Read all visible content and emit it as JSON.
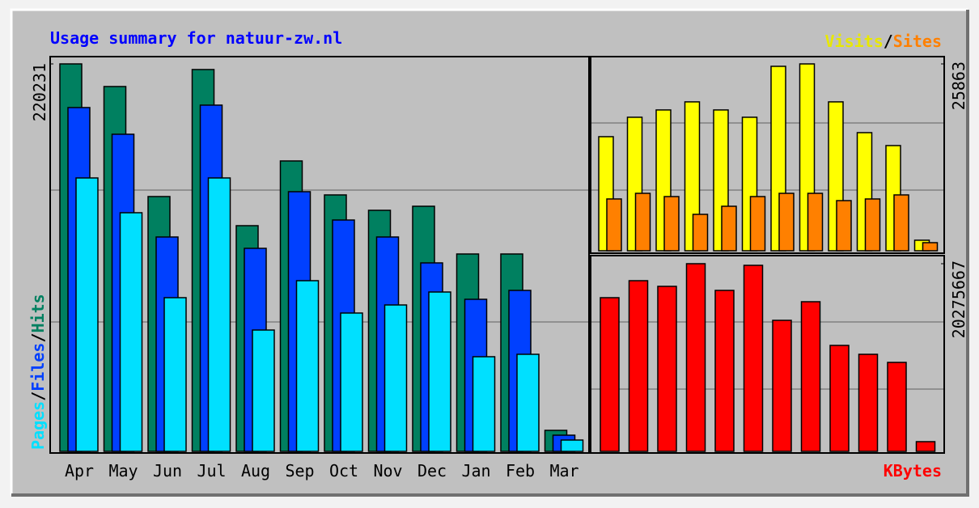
{
  "legend_separator": "/",
  "chart_data": [
    {
      "type": "bar",
      "title": "Usage summary for natuur-zw.nl",
      "categories": [
        "Apr",
        "May",
        "Jun",
        "Jul",
        "Aug",
        "Sep",
        "Oct",
        "Nov",
        "Dec",
        "Jan",
        "Feb",
        "Mar"
      ],
      "series": [
        {
          "name": "Hits",
          "color": "#008060",
          "values": [
            220231,
            207370,
            144840,
            217030,
            128280,
            165070,
            145760,
            137020,
            139320,
            112190,
            112190,
            11950
          ]
        },
        {
          "name": "Files",
          "color": "#0040ff",
          "values": [
            195420,
            180250,
            121850,
            196800,
            115410,
            147600,
            131500,
            121850,
            107130,
            86440,
            91500,
            9200
          ]
        },
        {
          "name": "Pages",
          "color": "#00e0ff",
          "values": [
            155410,
            135640,
            87360,
            155410,
            68970,
            97020,
            78630,
            83220,
            90580,
            53800,
            55180,
            6440
          ]
        }
      ],
      "ylim": [
        0,
        220231
      ],
      "yticks": [
        220231
      ]
    },
    {
      "type": "bar",
      "series": [
        {
          "name": "Visits",
          "color": "#ffff00",
          "values": [
            15790,
            18480,
            19490,
            20610,
            19490,
            18480,
            25530,
            25863,
            20610,
            16350,
            14560,
            1460
          ]
        },
        {
          "name": "Sites",
          "color": "#ff8000",
          "values": [
            7170,
            7950,
            7500,
            5040,
            6160,
            7500,
            7950,
            7950,
            6940,
            7170,
            7730,
            1120
          ]
        }
      ],
      "ylim": [
        0,
        25863
      ],
      "yticks": [
        25863
      ]
    },
    {
      "type": "bar",
      "series": [
        {
          "name": "KBytes",
          "color": "#ff0000",
          "values": [
            16605000,
            18440000,
            17829000,
            20275667,
            17392000,
            20101000,
            14158000,
            16168000,
            11449000,
            10487000,
            9613000,
            1049000
          ]
        }
      ],
      "ylim": [
        0,
        20275667
      ],
      "yticks": [
        20275667
      ]
    }
  ]
}
